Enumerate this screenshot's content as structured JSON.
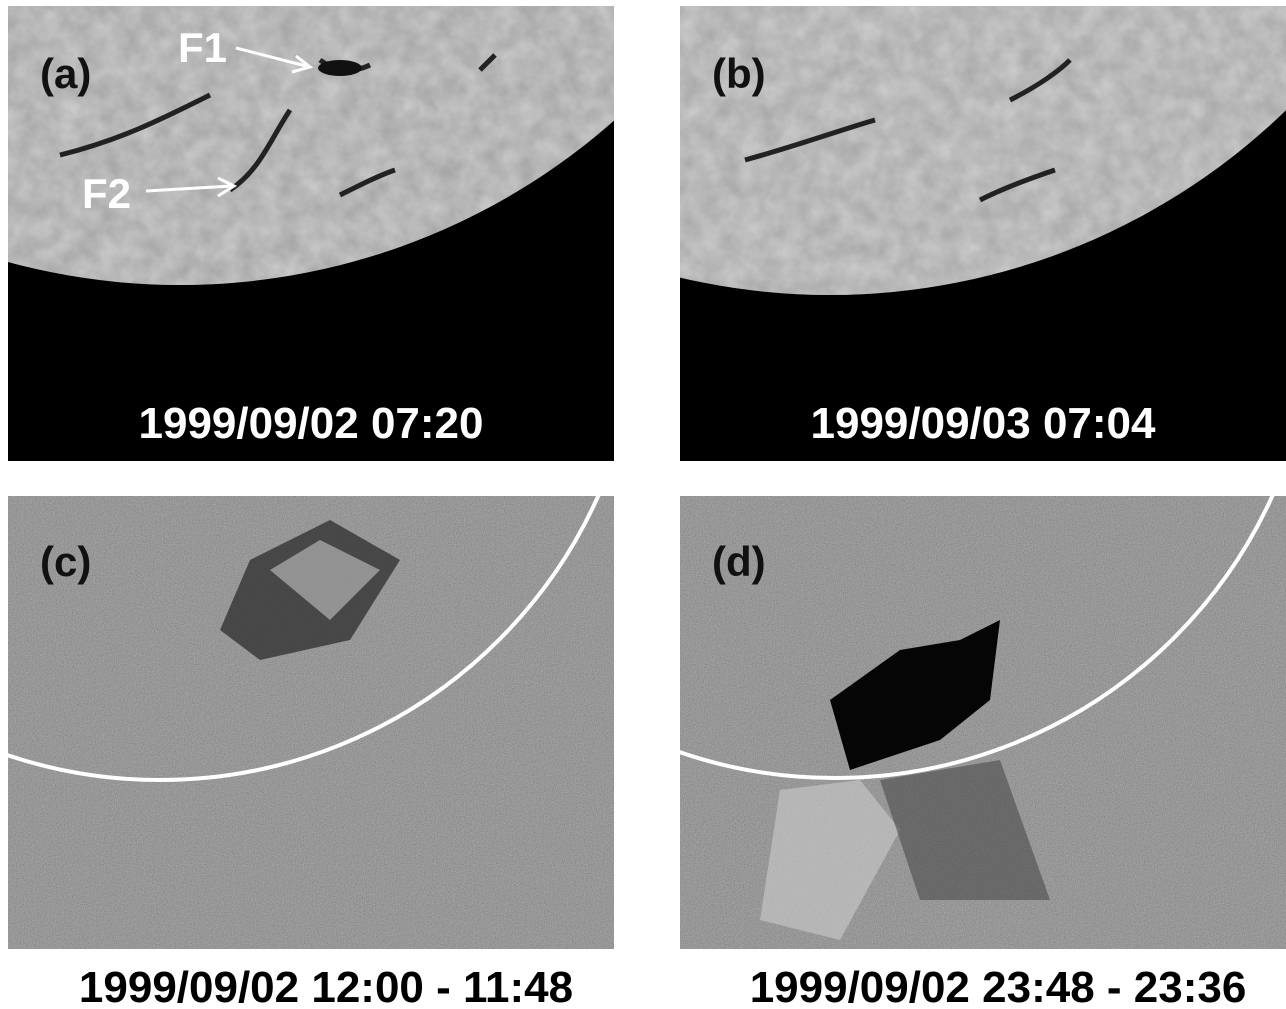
{
  "panels": [
    {
      "label": "(a)",
      "caption": "1999/09/02 07:20",
      "annotations": [
        "F1",
        "F2"
      ]
    },
    {
      "label": "(b)",
      "caption": "1999/09/03 07:04"
    },
    {
      "label": "(c)",
      "caption": "1999/09/02 12:00 - 11:48"
    },
    {
      "label": "(d)",
      "caption": "1999/09/02 23:48 - 23:36"
    }
  ]
}
